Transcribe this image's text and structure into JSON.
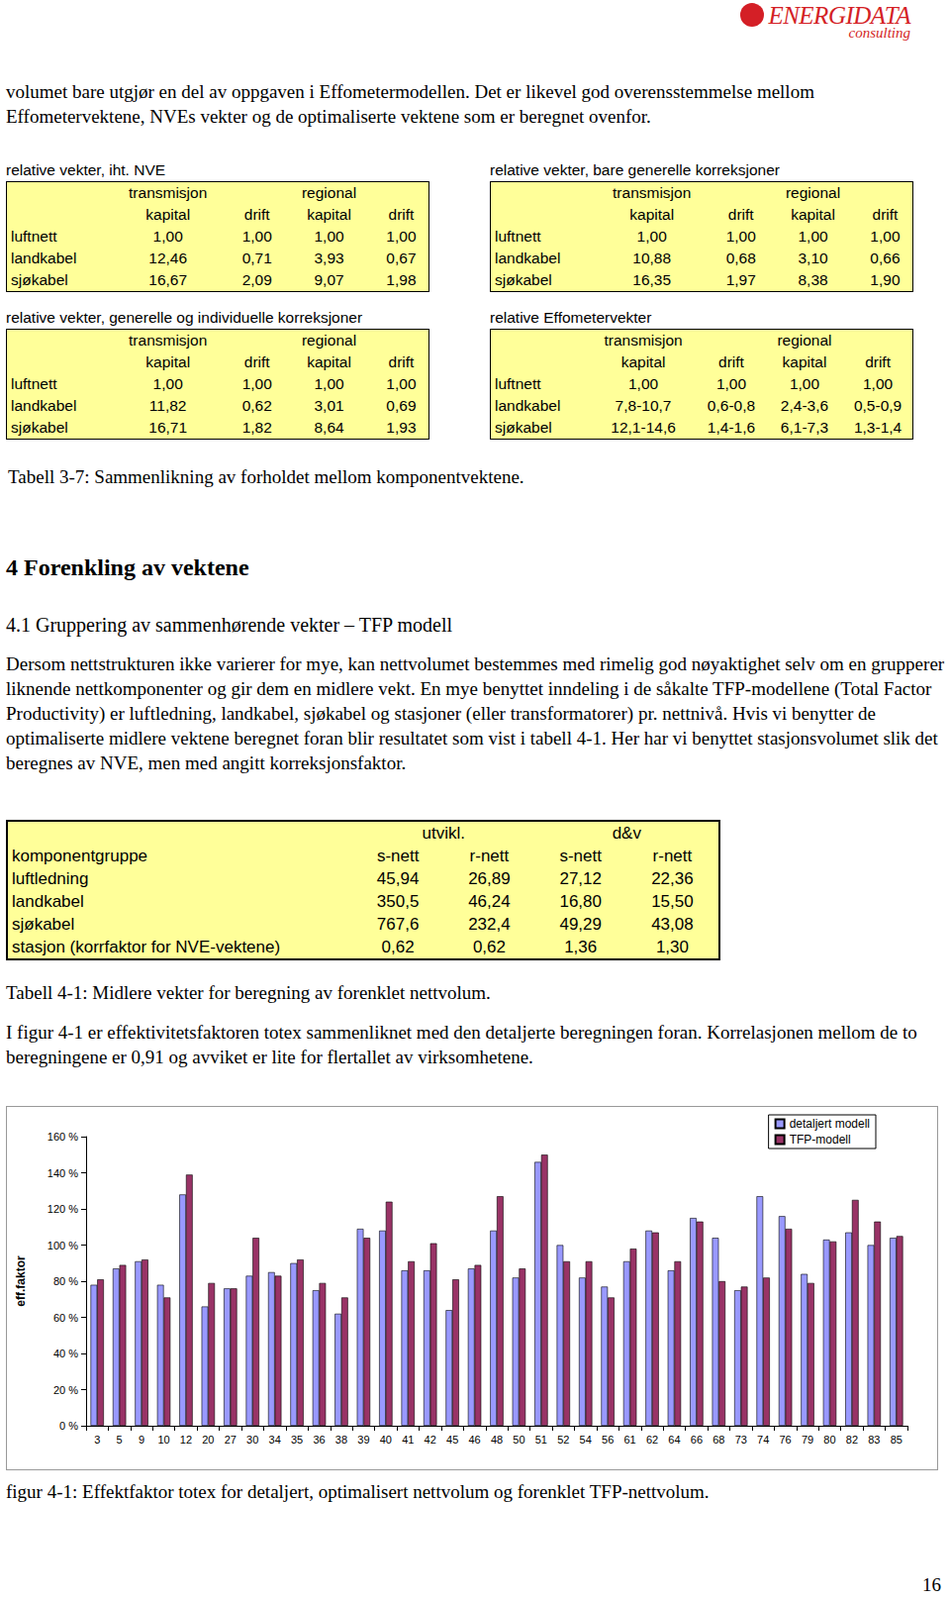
{
  "header": {
    "logo": "ENERGIDATA",
    "sub": "consulting"
  },
  "intro": "volumet bare utgjør en del av oppgaven i Effometermodellen. Det er likevel god overensstemmelse mellom Effometervektene, NVEs vekter og de optimaliserte vektene som er beregnet ovenfor.",
  "weight_tables": [
    {
      "title": "relative vekter, iht. NVE",
      "groups": [
        "transmisjon",
        "regional"
      ],
      "columns": [
        "kapital",
        "drift",
        "kapital",
        "drift"
      ],
      "rows": [
        [
          "luftnett",
          "1,00",
          "1,00",
          "1,00",
          "1,00"
        ],
        [
          "landkabel",
          "12,46",
          "0,71",
          "3,93",
          "0,67"
        ],
        [
          "sjøkabel",
          "16,67",
          "2,09",
          "9,07",
          "1,98"
        ]
      ]
    },
    {
      "title": "relative vekter, bare generelle korreksjoner",
      "groups": [
        "transmisjon",
        "regional"
      ],
      "columns": [
        "kapital",
        "drift",
        "kapital",
        "drift"
      ],
      "rows": [
        [
          "luftnett",
          "1,00",
          "1,00",
          "1,00",
          "1,00"
        ],
        [
          "landkabel",
          "10,88",
          "0,68",
          "3,10",
          "0,66"
        ],
        [
          "sjøkabel",
          "16,35",
          "1,97",
          "8,38",
          "1,90"
        ]
      ]
    },
    {
      "title": "relative vekter, generelle og individuelle korreksjoner",
      "groups": [
        "transmisjon",
        "regional"
      ],
      "columns": [
        "kapital",
        "drift",
        "kapital",
        "drift"
      ],
      "rows": [
        [
          "luftnett",
          "1,00",
          "1,00",
          "1,00",
          "1,00"
        ],
        [
          "landkabel",
          "11,82",
          "0,62",
          "3,01",
          "0,69"
        ],
        [
          "sjøkabel",
          "16,71",
          "1,82",
          "8,64",
          "1,93"
        ]
      ]
    },
    {
      "title": "relative Effometervekter",
      "groups": [
        "transmisjon",
        "regional"
      ],
      "columns": [
        "kapital",
        "drift",
        "kapital",
        "drift"
      ],
      "rows": [
        [
          "luftnett",
          "1,00",
          "1,00",
          "1,00",
          "1,00"
        ],
        [
          "landkabel",
          "7,8-10,7",
          "0,6-0,8",
          "2,4-3,6",
          "0,5-0,9"
        ],
        [
          "sjøkabel",
          "12,1-14,6",
          "1,4-1,6",
          "6,1-7,3",
          "1,3-1,4"
        ]
      ]
    }
  ],
  "table_3_7_caption": "Tabell 3-7: Sammenlikning av forholdet mellom komponentvektene.",
  "section": "4 Forenkling av vektene",
  "subsection": "4.1 Gruppering av sammenhørende vekter – TFP modell",
  "paragraph_1": "Dersom nettstrukturen ikke varierer for mye, kan nettvolumet bestemmes med rimelig god nøyaktighet selv om en grupperer liknende nettkomponenter og gir dem en midlere vekt. En mye benyttet inndeling i de såkalte TFP-modellene (Total Factor Productivity) er luftledning, landkabel, sjøkabel og stasjoner (eller transformatorer) pr. nettnivå. Hvis vi benytter de optimaliserte midlere vektene beregnet foran blir resultatet som vist i tabell 4-1. Her har vi benyttet stasjonsvolumet slik det beregnes av NVE, men med angitt korreksjonsfaktor.",
  "table_4_1": {
    "group_headers": [
      "utvikl.",
      "d&v"
    ],
    "row_header": "komponentgruppe",
    "columns": [
      "s-nett",
      "r-nett",
      "s-nett",
      "r-nett"
    ],
    "rows": [
      [
        "luftledning",
        "45,94",
        "26,89",
        "27,12",
        "22,36"
      ],
      [
        "landkabel",
        "350,5",
        "46,24",
        "16,80",
        "15,50"
      ],
      [
        "sjøkabel",
        "767,6",
        "232,4",
        "49,29",
        "43,08"
      ],
      [
        "stasjon (korrfaktor for NVE-vektene)",
        "0,62",
        "0,62",
        "1,36",
        "1,30"
      ]
    ],
    "caption": "Tabell 4-1: Midlere vekter for beregning av forenklet nettvolum."
  },
  "paragraph_2": "I figur 4-1 er effektivitetsfaktoren totex sammenliknet med den detaljerte beregningen foran. Korrelasjonen mellom de to beregningene er 0,91 og avviket er lite for flertallet av virksomhetene.",
  "chart_data": {
    "type": "bar",
    "y_label": "eff.faktor",
    "categories": [
      "3",
      "5",
      "9",
      "10",
      "12",
      "20",
      "27",
      "30",
      "34",
      "35",
      "36",
      "38",
      "39",
      "40",
      "41",
      "42",
      "45",
      "46",
      "48",
      "50",
      "51",
      "52",
      "54",
      "56",
      "61",
      "62",
      "64",
      "66",
      "68",
      "73",
      "74",
      "76",
      "79",
      "80",
      "82",
      "83",
      "85"
    ],
    "series": [
      {
        "name": "detaljert modell",
        "color": "#9999ff",
        "values": [
          78,
          87,
          91,
          78,
          128,
          66,
          76,
          83,
          85,
          90,
          75,
          62,
          109,
          108,
          86,
          86,
          64,
          87,
          108,
          82,
          146,
          100,
          82,
          77,
          91,
          108,
          86,
          115,
          104,
          75,
          127,
          116,
          84,
          103,
          107,
          100,
          104
        ]
      },
      {
        "name": "TFP-modell",
        "color": "#993366",
        "values": [
          81,
          89,
          92,
          71,
          139,
          79,
          76,
          104,
          83,
          92,
          79,
          71,
          104,
          124,
          91,
          101,
          81,
          89,
          127,
          87,
          150,
          91,
          91,
          71,
          98,
          107,
          91,
          113,
          80,
          77,
          82,
          109,
          79,
          102,
          125,
          113,
          105
        ]
      }
    ],
    "ylim": [
      0,
      160
    ],
    "yticks": [
      {
        "value": 0,
        "label": "0 %"
      },
      {
        "value": 20,
        "label": "20 %"
      },
      {
        "value": 40,
        "label": "40 %"
      },
      {
        "value": 60,
        "label": "60 %"
      },
      {
        "value": 80,
        "label": "80 %"
      },
      {
        "value": 100,
        "label": "100 %"
      },
      {
        "value": 120,
        "label": "120 %"
      },
      {
        "value": 140,
        "label": "140 %"
      },
      {
        "value": 160,
        "label": "160 %"
      }
    ],
    "grid": false,
    "legend": "top-right"
  },
  "figure_caption": "figur 4-1: Effektfaktor totex for detaljert, optimalisert nettvolum og forenklet TFP-nettvolum.",
  "page_number": "16"
}
